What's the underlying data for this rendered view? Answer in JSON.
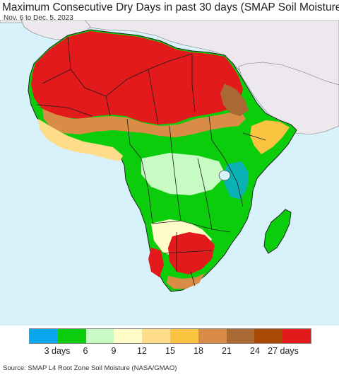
{
  "title": "Maximum Consecutive Dry Days in past 30 days (SMAP Soil Moisture)",
  "subtitle": "Nov. 6 to Dec. 5, 2023",
  "source": "Source: SMAP L4 Root Zone Soil Moisture (NASA/GMAO)",
  "colors": {
    "ocean": "#d7f2fb",
    "land_outside": "#ece8ee",
    "borders": "#1a1a1a",
    "bin_0_3": "#09a7ee",
    "bin_3_6": "#0ccd0c",
    "bin_6_9": "#c8fbc4",
    "bin_9_12": "#fffcc8",
    "bin_12_15": "#fedd8a",
    "bin_15_18": "#fac340",
    "bin_18_21": "#d88c46",
    "bin_21_24": "#a86935",
    "bin_24_27": "#a84a05",
    "bin_27_30": "#e31a1c"
  },
  "legend": {
    "swatches": [
      "#09a7ee",
      "#0ccd0c",
      "#c8fbc4",
      "#fffcc8",
      "#fedd8a",
      "#fac340",
      "#d88c46",
      "#a86935",
      "#a84a05",
      "#e31a1c"
    ],
    "labels": [
      {
        "text": "3 days",
        "at": 1
      },
      {
        "text": "6",
        "at": 2
      },
      {
        "text": "9",
        "at": 3
      },
      {
        "text": "12",
        "at": 4
      },
      {
        "text": "15",
        "at": 5
      },
      {
        "text": "18",
        "at": 6
      },
      {
        "text": "21",
        "at": 7
      },
      {
        "text": "24",
        "at": 8
      },
      {
        "text": "27 days",
        "at": 9
      }
    ]
  }
}
